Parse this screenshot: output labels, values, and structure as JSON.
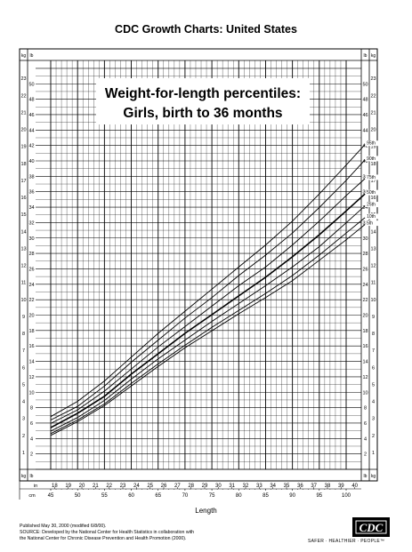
{
  "header": {
    "title": "CDC Growth Charts: United States"
  },
  "chart_data": {
    "type": "line",
    "title": "Weight-for-length percentiles:",
    "subtitle": "Girls, birth to 36 months",
    "xlabel": "Length",
    "x_unit_cm": "cm",
    "x_unit_in": "in",
    "y_unit_kg": "kg",
    "y_unit_lb": "lb",
    "xlim_cm": [
      45,
      104
    ],
    "ylim_kg": [
      0,
      24
    ],
    "grid": true,
    "x_ticks_cm": [
      45,
      50,
      55,
      60,
      65,
      70,
      75,
      80,
      85,
      90,
      95,
      100
    ],
    "x_ticks_in": [
      18,
      19,
      20,
      21,
      22,
      23,
      24,
      25,
      26,
      27,
      28,
      29,
      30,
      31,
      32,
      33,
      34,
      35,
      36,
      37,
      38,
      39,
      40
    ],
    "y_ticks_kg": [
      1,
      2,
      3,
      4,
      5,
      6,
      7,
      8,
      9,
      10,
      11,
      12,
      13,
      14,
      15,
      16,
      17,
      18,
      19,
      20,
      21,
      22,
      23
    ],
    "y_ticks_lb": [
      2,
      4,
      6,
      8,
      10,
      12,
      14,
      16,
      18,
      20,
      22,
      24,
      26,
      28,
      30,
      32,
      34,
      36,
      38,
      40,
      42,
      44,
      46,
      48,
      50
    ],
    "x": [
      45,
      50,
      55,
      60,
      65,
      70,
      75,
      80,
      85,
      90,
      95,
      100,
      103.5
    ],
    "series": [
      {
        "name": "95th",
        "values": [
          3.1,
          4.0,
          5.2,
          6.6,
          8.0,
          9.3,
          10.6,
          11.9,
          13.2,
          14.6,
          16.2,
          17.9,
          19.1
        ]
      },
      {
        "name": "90th",
        "values": [
          2.9,
          3.7,
          4.9,
          6.3,
          7.6,
          8.9,
          10.1,
          11.4,
          12.6,
          13.9,
          15.4,
          17.0,
          18.2
        ]
      },
      {
        "name": "75th",
        "values": [
          2.7,
          3.5,
          4.6,
          5.9,
          7.2,
          8.4,
          9.6,
          10.8,
          11.9,
          13.2,
          14.6,
          16.1,
          17.1
        ]
      },
      {
        "name": "50th",
        "values": [
          2.45,
          3.3,
          4.3,
          5.6,
          6.8,
          8.0,
          9.1,
          10.2,
          11.3,
          12.5,
          13.8,
          15.2,
          16.2
        ]
      },
      {
        "name": "25th",
        "values": [
          2.25,
          3.05,
          4.05,
          5.3,
          6.5,
          7.6,
          8.7,
          9.75,
          10.8,
          11.9,
          13.1,
          14.5,
          15.5
        ]
      },
      {
        "name": "10th",
        "values": [
          2.1,
          2.9,
          3.85,
          5.05,
          6.2,
          7.3,
          8.35,
          9.35,
          10.35,
          11.4,
          12.6,
          13.9,
          14.8
        ]
      },
      {
        "name": "5th",
        "values": [
          2.0,
          2.8,
          3.75,
          4.9,
          6.05,
          7.15,
          8.15,
          9.15,
          10.1,
          11.1,
          12.3,
          13.5,
          14.4
        ]
      }
    ]
  },
  "footer": {
    "line1": "Published May 30, 2000 (modified 6/8/00).",
    "line2": "SOURCE: Developed by the National Center for Health Statistics in collaboration with",
    "line3": "the National Center for Chronic Disease Prevention and Health Promotion (2000).",
    "logo_text": "CDC",
    "tagline": "SAFER · HEALTHIER · PEOPLE™"
  }
}
